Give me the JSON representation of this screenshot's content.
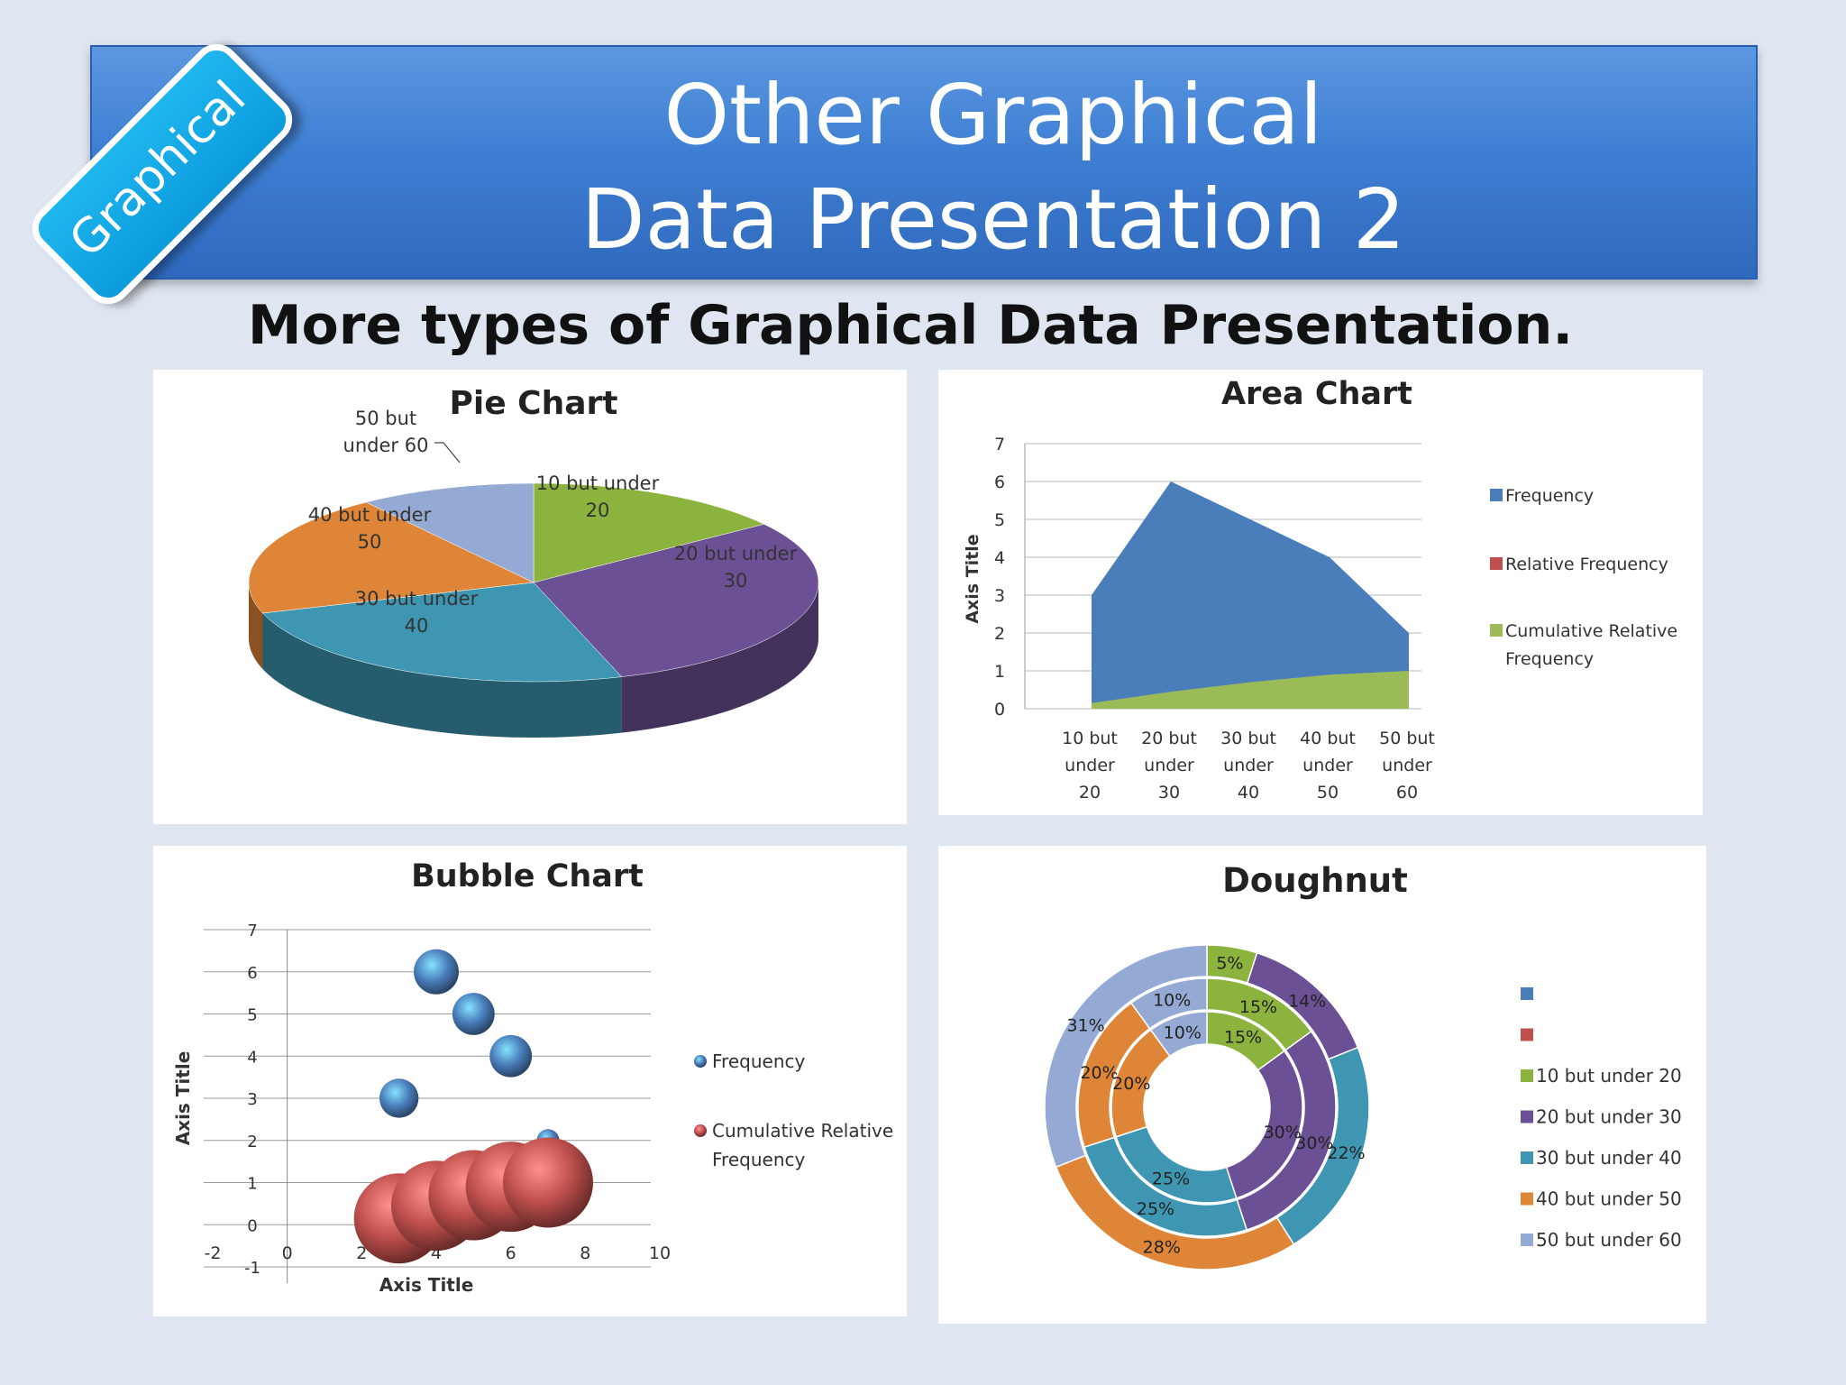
{
  "slide": {
    "title_line1": "Other Graphical",
    "title_line2": "Data Presentation 2",
    "badge": "Graphical",
    "subtitle": "More types of Graphical Data Presentation."
  },
  "chart_data": [
    {
      "type": "pie",
      "title": "Pie Chart",
      "categories": [
        "10 but under 20",
        "20 but under 30",
        "30 but under 40",
        "40 but under 50",
        "50 but under 60"
      ],
      "labels": [
        [
          "10 but under",
          "20"
        ],
        [
          "20 but under",
          "30"
        ],
        [
          "30 but under",
          "40"
        ],
        [
          "40 but under",
          "50"
        ],
        [
          "50 but",
          "under 60"
        ]
      ],
      "values": [
        3,
        6,
        5,
        4,
        2
      ],
      "colors": [
        "#8db33f",
        "#6c5095",
        "#3e96b2",
        "#de8537",
        "#94a9d4"
      ],
      "style": "3d"
    },
    {
      "type": "area",
      "title": "Area Chart",
      "ylabel": "Axis Title",
      "ylim": [
        0,
        7
      ],
      "yticks": [
        "0",
        "1",
        "2",
        "3",
        "4",
        "5",
        "6",
        "7"
      ],
      "categories": [
        [
          "10 but",
          "under",
          "20"
        ],
        [
          "20 but",
          "under",
          "30"
        ],
        [
          "30 but",
          "under",
          "40"
        ],
        [
          "40 but",
          "under",
          "50"
        ],
        [
          "50 but",
          "under",
          "60"
        ]
      ],
      "series": [
        {
          "name": "Frequency",
          "color": "#4a7ebb",
          "values": [
            3,
            6,
            5,
            4,
            2
          ]
        },
        {
          "name": "Relative Frequency",
          "color": "#c0504d",
          "values": [
            0.15,
            0.3,
            0.25,
            0.2,
            0.1
          ]
        },
        {
          "name": "Cumulative Relative Frequency",
          "color": "#9bbb59",
          "values": [
            0.15,
            0.45,
            0.7,
            0.9,
            1.0
          ]
        }
      ],
      "legend_lines": [
        [
          "Frequency"
        ],
        [
          "Relative Frequency"
        ],
        [
          "Cumulative Relative",
          "Frequency"
        ]
      ],
      "legend": "right",
      "grid": true
    },
    {
      "type": "scatter",
      "subtype": "bubble",
      "title": "Bubble Chart",
      "xlabel": "Axis Title",
      "ylabel": "Axis Title",
      "xlim": [
        -2,
        10
      ],
      "ylim": [
        -1,
        7
      ],
      "xticks": [
        "-2",
        "0",
        "2",
        "4",
        "6",
        "8",
        "10"
      ],
      "yticks": [
        "-1",
        "0",
        "1",
        "2",
        "3",
        "4",
        "5",
        "6",
        "7"
      ],
      "series": [
        {
          "name": "Frequency",
          "color": "#4a7ebb",
          "points": [
            {
              "x": 3,
              "y": 3,
              "size": 3
            },
            {
              "x": 4,
              "y": 6,
              "size": 4
            },
            {
              "x": 5,
              "y": 5,
              "size": 3.5
            },
            {
              "x": 6,
              "y": 4,
              "size": 3.5
            },
            {
              "x": 7,
              "y": 2,
              "size": 1
            }
          ]
        },
        {
          "name": "Cumulative Relative Frequency",
          "color": "#c0504d",
          "points": [
            {
              "x": 3,
              "y": 0.15,
              "size": 16
            },
            {
              "x": 4,
              "y": 0.45,
              "size": 16
            },
            {
              "x": 5,
              "y": 0.7,
              "size": 16
            },
            {
              "x": 6,
              "y": 0.9,
              "size": 16
            },
            {
              "x": 7,
              "y": 1.0,
              "size": 16
            }
          ]
        }
      ],
      "legend_lines": [
        [
          "Frequency"
        ],
        [
          "Cumulative Relative",
          "Frequency"
        ]
      ],
      "legend": "right",
      "grid": true
    },
    {
      "type": "pie",
      "subtype": "doughnut",
      "title": "Doughnut",
      "categories": [
        "10 but under 20",
        "20 but under 30",
        "30 but under 40",
        "40 but under 50",
        "50 but under 60"
      ],
      "colors": [
        "#8db33f",
        "#6c5095",
        "#3e96b2",
        "#de8537",
        "#94a9d4"
      ],
      "rings": [
        {
          "values": [
            5,
            14,
            22,
            28,
            31
          ],
          "labels": [
            "5%",
            "14%",
            "22%",
            "28%",
            "31%"
          ]
        },
        {
          "values": [
            15,
            30,
            25,
            20,
            10
          ],
          "labels": [
            "15%",
            "30%",
            "25%",
            "20%",
            "10%"
          ]
        },
        {
          "values": [
            15,
            30,
            25,
            20,
            10
          ],
          "labels": [
            "15%",
            "30%",
            "25%",
            "20%",
            "10%"
          ]
        }
      ],
      "legend_extra": [
        "#4a7ebb",
        "#c0504d"
      ],
      "legend": "right"
    }
  ]
}
